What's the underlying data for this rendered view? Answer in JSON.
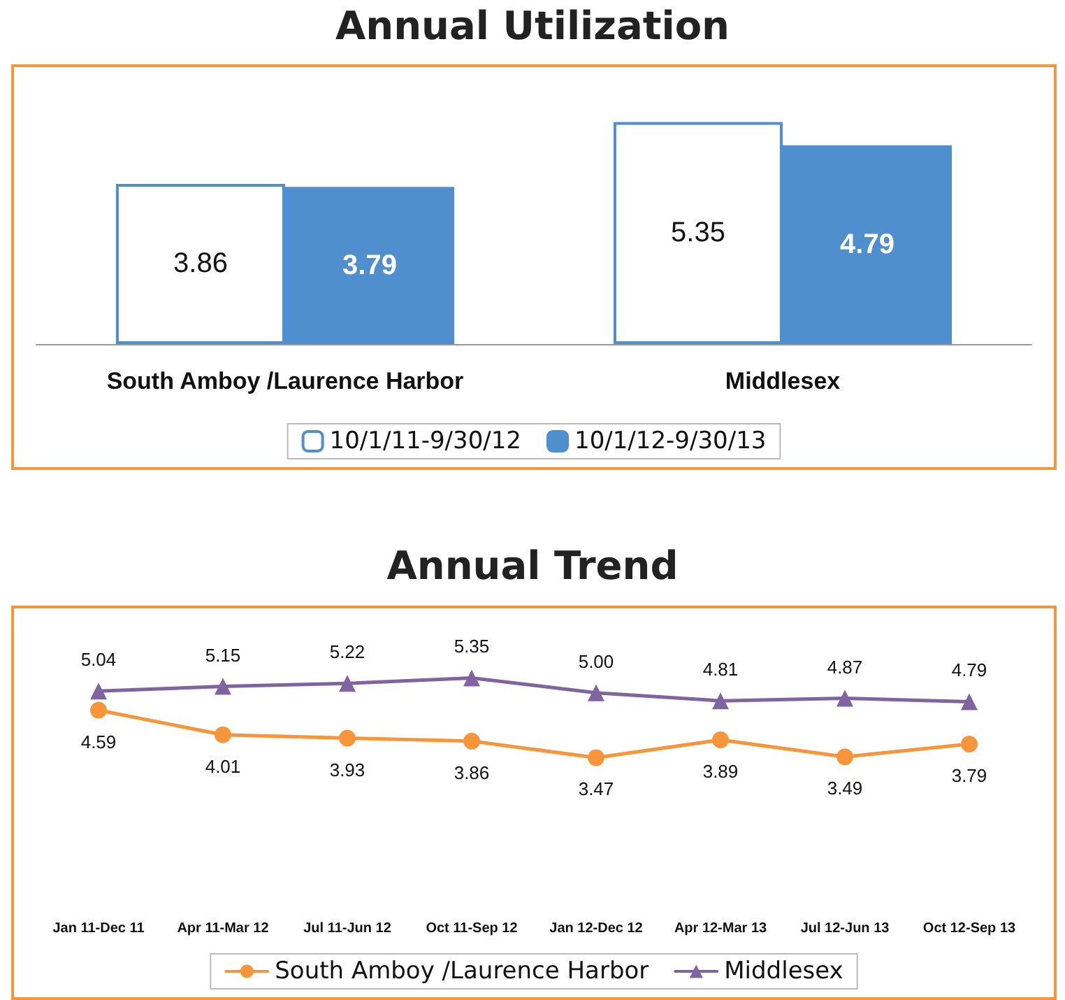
{
  "chart_data": [
    {
      "type": "bar",
      "title": "Annual Utilization",
      "categories": [
        "South Amboy /Laurence Harbor",
        "Middlesex"
      ],
      "series": [
        {
          "name": "10/1/11-9/30/12",
          "color": "#ffffff",
          "values": [
            3.86,
            5.35
          ]
        },
        {
          "name": "10/1/12-9/30/13",
          "color": "#4f8fce",
          "values": [
            3.79,
            4.79
          ]
        }
      ],
      "data_labels": true,
      "legend": "bottom",
      "grid": false
    },
    {
      "type": "line",
      "title": "Annual Trend",
      "categories": [
        "Jan 11-Dec 11",
        "Apr 11-Mar 12",
        "Jul 11-Jun 12",
        "Oct 11-Sep 12",
        "Jan 12-Dec 12",
        "Apr 12-Mar 13",
        "Jul 12-Jun 13",
        "Oct 12-Sep 13"
      ],
      "series": [
        {
          "name": "South Amboy /Laurence Harbor",
          "color": "#f7953b",
          "marker": "circle",
          "values": [
            4.59,
            4.01,
            3.93,
            3.86,
            3.47,
            3.89,
            3.49,
            3.79
          ]
        },
        {
          "name": "Middlesex",
          "color": "#8064a2",
          "marker": "triangle",
          "values": [
            5.04,
            5.15,
            5.22,
            5.35,
            5.0,
            4.81,
            4.87,
            4.79
          ],
          "value_labels": [
            "5.04",
            "5.15",
            "5.22",
            "5.35",
            "5.00",
            "4.81",
            "4.87",
            "4.79"
          ]
        }
      ],
      "data_labels": true,
      "legend": "bottom",
      "grid": false,
      "line_style": "solid"
    }
  ]
}
